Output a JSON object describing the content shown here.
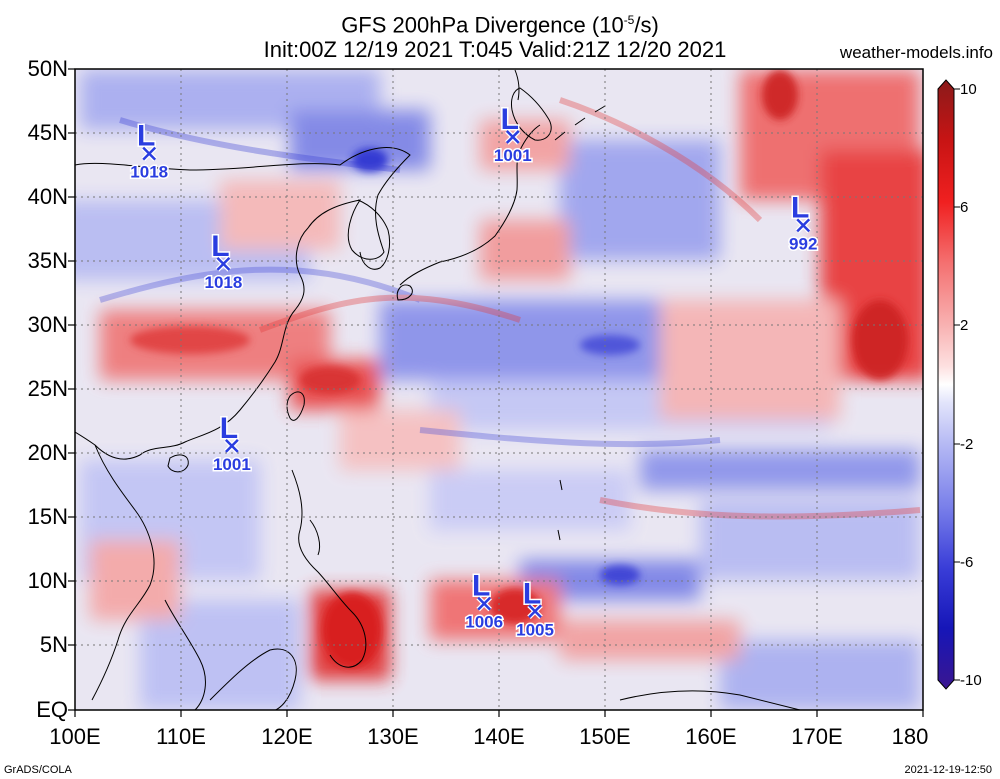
{
  "map": {
    "title_line1_prefix": "GFS 200hPa Divergence (10",
    "title_line1_exponent": "-5",
    "title_line1_suffix": "/s)",
    "title_line2": "Init:00Z 12/19 2021 T:045 Valid:21Z 12/20 2021",
    "site": "weather-models.info",
    "footer_left": "GrADS/COLA",
    "footer_right": "2021-12-19-12:50",
    "lat_labels": [
      "50N",
      "45N",
      "40N",
      "35N",
      "30N",
      "25N",
      "20N",
      "15N",
      "10N",
      "5N",
      "EQ"
    ],
    "lon_labels": [
      "100E",
      "110E",
      "120E",
      "130E",
      "140E",
      "150E",
      "160E",
      "170E",
      "180"
    ],
    "colorbar": {
      "labels": [
        "10",
        "6",
        "2",
        "-2",
        "-6",
        "-10"
      ],
      "colors": [
        "#8a1a1a",
        "#c81414",
        "#f02020",
        "#f47070",
        "#f8b0b0",
        "#fde0e0",
        "#ffffff",
        "#e2e4fb",
        "#b4b8f4",
        "#7a80ea",
        "#3a3ed8",
        "#1616b8",
        "#3a1690"
      ]
    },
    "lows": [
      {
        "symbol": "L",
        "pressure": "1018",
        "lat": 43.4,
        "lon": 107.0
      },
      {
        "symbol": "L",
        "pressure": "1001",
        "lat": 44.7,
        "lon": 141.3
      },
      {
        "symbol": "L",
        "pressure": "992",
        "lat": 37.8,
        "lon": 168.7
      },
      {
        "symbol": "L",
        "pressure": "1018",
        "lat": 34.8,
        "lon": 114.0
      },
      {
        "symbol": "L",
        "pressure": "1001",
        "lat": 20.6,
        "lon": 114.8
      },
      {
        "symbol": "L",
        "pressure": "1006",
        "lat": 8.3,
        "lon": 138.6
      },
      {
        "symbol": "L",
        "pressure": "1005",
        "lat": 7.7,
        "lon": 143.4
      }
    ]
  }
}
